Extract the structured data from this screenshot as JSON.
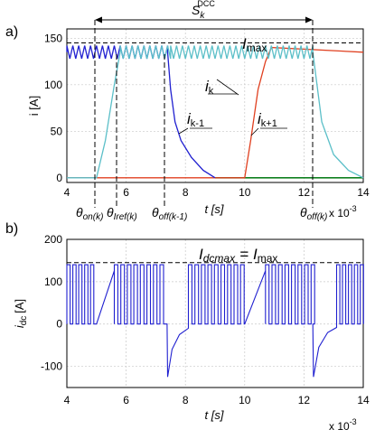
{
  "chart_data": [
    {
      "panel_label": "a)",
      "type": "line",
      "xlabel": "t [s]",
      "x_multiplier": "x 10",
      "x_multiplier_exp": "-3",
      "ylabel": "i [A]",
      "xlim": [
        4,
        14
      ],
      "ylim": [
        -5,
        160
      ],
      "xticks": [
        4,
        6,
        8,
        10,
        12,
        14
      ],
      "yticks": [
        0,
        50,
        100,
        150
      ],
      "grid": true,
      "dashed_level": 145,
      "series": [
        {
          "name": "i_k",
          "color": "#5bbfc8",
          "x": [
            4.0,
            5.0,
            5.3,
            5.6,
            5.8,
            7.5,
            12.3,
            12.6,
            13.0,
            13.5,
            14.0
          ],
          "y": [
            0,
            0,
            40,
            100,
            135,
            135,
            135,
            60,
            25,
            8,
            0
          ]
        },
        {
          "name": "i_k-1",
          "color": "#2020d0",
          "x": [
            4.0,
            7.4,
            7.5,
            7.65,
            7.85,
            8.2,
            8.6,
            9.0
          ],
          "y": [
            135,
            135,
            95,
            60,
            40,
            22,
            8,
            0
          ]
        },
        {
          "name": "i_k+1",
          "color": "#e04020",
          "x": [
            4.0,
            10.0,
            10.2,
            10.45,
            10.7,
            10.9,
            14.0
          ],
          "y": [
            0,
            0,
            40,
            95,
            125,
            140,
            135
          ]
        },
        {
          "name": "i_k-2",
          "color": "#108020",
          "x": [
            9.0,
            14.0
          ],
          "y": [
            0,
            0
          ]
        }
      ],
      "annotations": {
        "s_main": "S",
        "s_sub": "k",
        "s_sup": "DCC",
        "imax": "I",
        "imax_sub": "max",
        "ik": "i",
        "ik_sub": "k",
        "ikm1": "i",
        "ikm1_sub": "k-1",
        "ikp1": "i",
        "ikp1_sub": "k+1",
        "theta_on": "θ",
        "theta_on_sub": "on(k)",
        "theta_iref": "θ",
        "theta_iref_sub": "Iref(k)",
        "theta_offm1": "θ",
        "theta_offm1_sub": "off(k-1)",
        "theta_off": "θ",
        "theta_off_sub": "off(k)"
      }
    },
    {
      "panel_label": "b)",
      "type": "line",
      "xlabel": "t [s]",
      "x_multiplier": "x 10",
      "x_multiplier_exp": "-3",
      "ylabel": "i",
      "ylabel_sub": "dc",
      "ylabel_unit": "[A]",
      "xlim": [
        4,
        14
      ],
      "ylim": [
        -150,
        200
      ],
      "xticks": [
        4,
        6,
        8,
        10,
        12,
        14
      ],
      "yticks": [
        -100,
        0,
        100,
        200
      ],
      "grid": true,
      "dashed_level": 145,
      "series": [
        {
          "name": "i_dc",
          "color": "#2020d0",
          "description_values": {
            "high": 140,
            "low": 0,
            "dip_7_4": -125,
            "dip_12_3": -125
          }
        }
      ],
      "annotations": {
        "idcmax": "I",
        "idcmax_sub": "dcmax",
        "eq": "=",
        "imax": "I",
        "imax_sub": "max"
      }
    }
  ]
}
